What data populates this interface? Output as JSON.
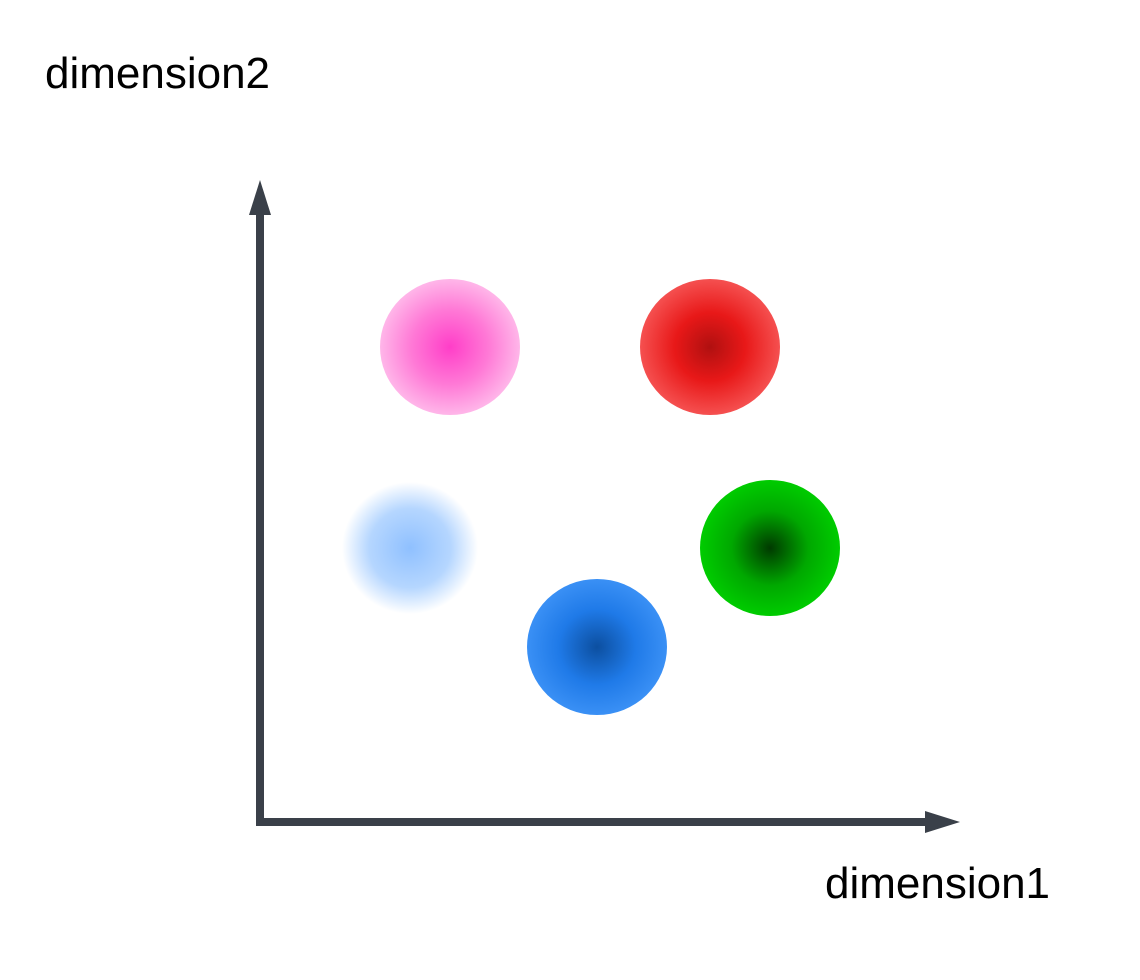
{
  "axes": {
    "y_label": "dimension2",
    "x_label": "dimension1"
  }
}
